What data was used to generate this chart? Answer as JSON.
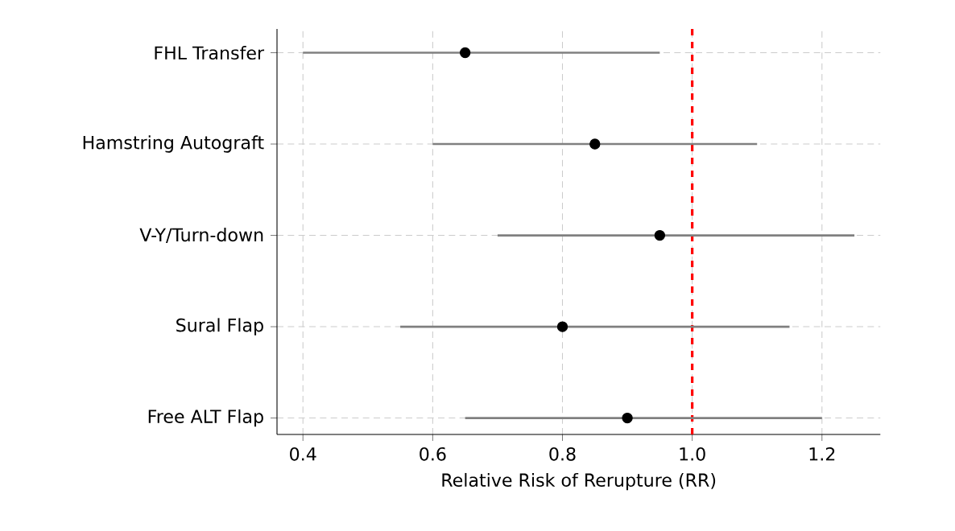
{
  "chart_data": {
    "type": "scatter",
    "orientation": "horizontal",
    "categories": [
      "FHL Transfer",
      "Hamstring Autograft",
      "V-Y/Turn-down",
      "Sural Flap",
      "Free ALT Flap"
    ],
    "values": [
      0.65,
      0.85,
      0.95,
      0.8,
      0.9
    ],
    "errors": [
      [
        0.4,
        0.95
      ],
      [
        0.6,
        1.1
      ],
      [
        0.7,
        1.25
      ],
      [
        0.55,
        1.15
      ],
      [
        0.65,
        1.2
      ]
    ],
    "color": "#000000",
    "marker": "circle",
    "xlabel": "Relative Risk of Rerupture (RR)",
    "xlim": [
      0.36,
      1.29
    ],
    "xticks": [
      0.4,
      0.6,
      0.8,
      {
        "value": 1,
        "label": "1.0"
      },
      1.2
    ],
    "grid": true,
    "ref_lines": [
      {
        "axis": "x",
        "value": 1.0,
        "color": "#ff0000",
        "line_style": "dashed"
      }
    ]
  }
}
